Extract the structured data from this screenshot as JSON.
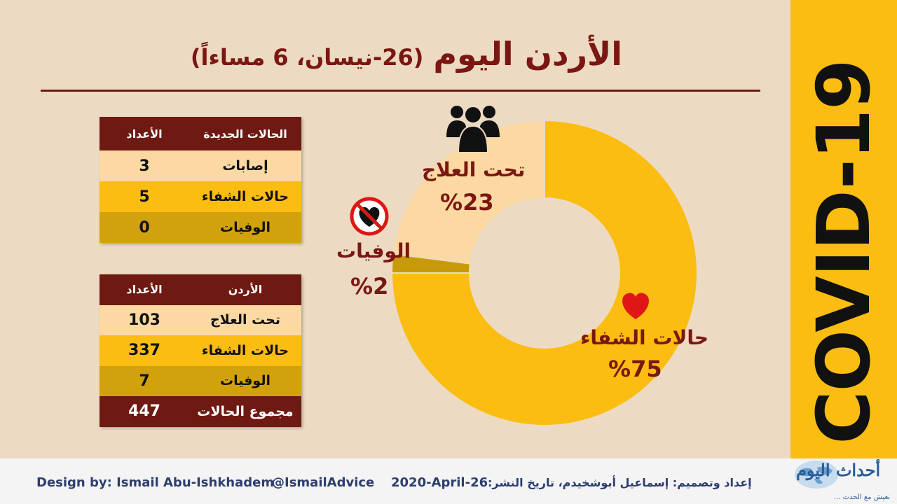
{
  "title": {
    "main": "الأردن اليوم",
    "sub": "(26-نيسان، 6 مساءاً)"
  },
  "sidebar": {
    "label": "COVID-19"
  },
  "table_new": {
    "header": {
      "category": "الحالات الجديدة",
      "count": "الأعداد"
    },
    "rows": [
      {
        "label": "إصابات",
        "value": "3"
      },
      {
        "label": "حالات الشفاء",
        "value": "5"
      },
      {
        "label": "الوفيات",
        "value": "0"
      }
    ]
  },
  "table_total": {
    "header": {
      "category": "الأردن",
      "count": "الأعداد"
    },
    "rows": [
      {
        "label": "تحت العلاج",
        "value": "103"
      },
      {
        "label": "حالات الشفاء",
        "value": "337"
      },
      {
        "label": "الوفيات",
        "value": "7"
      },
      {
        "label": "مجموع الحالات",
        "value": "447"
      }
    ]
  },
  "chart_data": {
    "type": "pie",
    "variant": "donut",
    "slices": [
      {
        "label": "حالات الشفاء",
        "value": 75,
        "pct_label": "%75",
        "color": "#fcbd12"
      },
      {
        "label": "الوفيات",
        "value": 2,
        "pct_label": "%2",
        "color": "#c89a0a"
      },
      {
        "label": "تحت العلاج",
        "value": 23,
        "pct_label": "%23",
        "color": "#fcd9a2"
      }
    ],
    "start_angle_deg": 0,
    "direction": "clockwise"
  },
  "icons": {
    "people": "group-people-icon",
    "no_heart": "no-heart-icon",
    "heart": "heart-icon"
  },
  "colors": {
    "background": "#ecdac3",
    "accent": "#fcbd12",
    "dark_red": "#6e1a12",
    "text_red": "#7b1712"
  },
  "footer": {
    "design_by": "Design by: Ismail Abu-Ishkhadem",
    "handle": "@IsmailAdvice",
    "date": "2020-April-26",
    "arabic_credit": "إعداد وتصميم: إسماعيل أبوشخيدم، تاريخ النشر:",
    "logo_main": "أحداث اليوم",
    "logo_tagline": "... نعيش مع الحدث"
  }
}
